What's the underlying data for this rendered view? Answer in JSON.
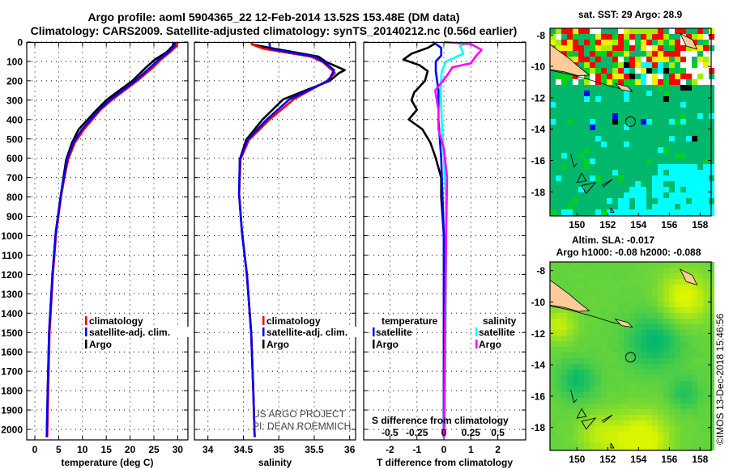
{
  "title": {
    "line1": "Argo profile: aoml 5904365_22 12-Feb-2014 13.52S 153.48E (DM data)",
    "line2": "Climatology: CARS2009. Satellite-adjusted climatology: synTS_20140212.nc (0.56d earlier)"
  },
  "chart_data": [
    {
      "type": "line",
      "name": "temperature-profile",
      "xlabel": "temperature (deg C)",
      "ylabel": "depth",
      "ylim": [
        2058,
        0
      ],
      "yticks": [
        0,
        100,
        200,
        300,
        400,
        500,
        600,
        700,
        800,
        900,
        1000,
        1100,
        1200,
        1300,
        1400,
        1500,
        1600,
        1700,
        1800,
        1900,
        2000
      ],
      "ytick_labels": [
        "0",
        "100",
        "200",
        "300",
        "400",
        "500",
        "600",
        "700",
        "800",
        "900",
        "1000",
        "1100",
        "1200",
        "1300",
        "1400",
        "1500",
        "1600",
        "1700",
        "1800",
        "1900",
        "2000"
      ],
      "xtick_values": [
        0,
        5,
        10,
        15,
        20,
        25,
        30
      ],
      "xticks": [
        "0",
        "5",
        "10",
        "15",
        "20",
        "25",
        "30"
      ],
      "legend": [
        "climatology",
        "satellite-adj. clim.",
        "Argo"
      ],
      "series": [
        {
          "name": "Argo",
          "color": "#000000",
          "depth": [
            0,
            20,
            54,
            90,
            130,
            200,
            296,
            350,
            451,
            520,
            605,
            700,
            785,
            981,
            1200,
            1500,
            1800,
            2040
          ],
          "values": [
            29.1,
            29.0,
            27.6,
            25.2,
            23.4,
            20.5,
            15.2,
            13.0,
            9.2,
            7.8,
            6.6,
            6.0,
            5.5,
            4.4,
            3.7,
            3.0,
            2.7,
            2.5
          ]
        },
        {
          "name": "climatology",
          "color": "#ff0000",
          "depth": [
            0,
            20,
            54,
            90,
            130,
            200,
            296,
            350,
            451,
            520,
            605,
            700,
            785,
            981,
            1200,
            1500,
            1800,
            2040
          ],
          "values": [
            30.0,
            29.8,
            28.3,
            26.5,
            24.9,
            21.5,
            16.3,
            13.8,
            10.3,
            8.4,
            7.0,
            6.2,
            5.6,
            4.5,
            3.8,
            3.1,
            2.8,
            2.6
          ]
        },
        {
          "name": "satellite-adj. clim.",
          "color": "#0000ff",
          "depth": [
            0,
            20,
            54,
            90,
            130,
            200,
            296,
            350,
            451,
            520,
            605,
            700,
            785,
            981,
            1200,
            1500,
            1800,
            2040
          ],
          "values": [
            29.5,
            29.3,
            28.0,
            26.0,
            24.3,
            21.1,
            15.9,
            13.5,
            9.9,
            8.1,
            6.8,
            6.1,
            5.5,
            4.4,
            3.7,
            3.0,
            2.7,
            2.5
          ]
        }
      ]
    },
    {
      "type": "line",
      "name": "salinity-profile",
      "xlabel": "salinity",
      "xtick_values": [
        34,
        34.5,
        35,
        35.5,
        36
      ],
      "xticks": [
        "34",
        "34.5",
        "35",
        "35.5",
        "36"
      ],
      "legend": [
        "climatology",
        "satellite-adj. clim.",
        "Argo"
      ],
      "series": [
        {
          "name": "Argo",
          "color": "#000000",
          "depth": [
            0,
            12,
            35,
            75,
            103,
            145,
            160,
            200,
            296,
            400,
            505,
            605,
            785,
            981,
            1200,
            1500,
            1800,
            2040
          ],
          "values": [
            34.62,
            34.62,
            34.95,
            35.56,
            35.67,
            35.93,
            35.85,
            35.72,
            35.06,
            34.77,
            34.54,
            34.45,
            34.44,
            34.48,
            34.55,
            34.61,
            34.64,
            34.66
          ]
        },
        {
          "name": "climatology",
          "color": "#ff0000",
          "depth": [
            0,
            12,
            35,
            75,
            103,
            145,
            160,
            200,
            296,
            400,
            505,
            605,
            785,
            981,
            1200,
            1500,
            1800,
            2040
          ],
          "values": [
            34.62,
            34.62,
            34.79,
            35.45,
            35.62,
            35.75,
            35.79,
            35.68,
            35.21,
            34.87,
            34.58,
            34.46,
            34.44,
            34.48,
            34.55,
            34.61,
            34.64,
            34.66
          ]
        },
        {
          "name": "satellite-adj. clim.",
          "color": "#0000ff",
          "depth": [
            0,
            12,
            35,
            75,
            103,
            145,
            160,
            200,
            296,
            400,
            505,
            605,
            785,
            981,
            1200,
            1500,
            1800,
            2040
          ],
          "values": [
            34.87,
            34.87,
            34.88,
            35.5,
            35.64,
            35.78,
            35.76,
            35.7,
            35.15,
            34.83,
            34.56,
            34.45,
            34.44,
            34.48,
            34.55,
            34.61,
            34.64,
            34.66
          ]
        }
      ]
    },
    {
      "type": "line",
      "name": "difference-profile",
      "xlabel": "T difference from climatology",
      "xtick_values": [
        -2,
        -1,
        0,
        1,
        2
      ],
      "xticks": [
        "-2",
        "-1",
        "0",
        "1",
        "2"
      ],
      "s_axis_label": "S difference from climatology",
      "s_tick_values": [
        -0.5,
        -0.25,
        0,
        0.25,
        0.5
      ],
      "s_ticks": [
        "-0.5",
        "-0.25",
        "0",
        "0.25",
        "0.5"
      ],
      "legend": {
        "temperature": "temperature",
        "salinity": "salinity",
        "satellite": "satellite",
        "argo": "Argo"
      },
      "series": [
        {
          "name": "T Argo",
          "axis": "T",
          "color": "#000000",
          "depth": [
            5,
            30,
            60,
            90,
            120,
            150,
            200,
            260,
            300,
            350,
            400,
            450,
            520,
            600,
            700,
            800,
            1000,
            1500,
            2040
          ],
          "values": [
            -0.3,
            -0.6,
            -1.2,
            -1.5,
            -0.9,
            -0.6,
            -0.7,
            -1.1,
            -1.2,
            -1.0,
            -1.3,
            -0.8,
            -0.5,
            -0.3,
            -0.1,
            -0.1,
            0,
            0,
            0
          ]
        },
        {
          "name": "T satellite",
          "axis": "T",
          "color": "#0000ff",
          "depth": [
            0,
            30,
            70,
            100,
            150,
            250,
            400,
            600,
            800,
            1000,
            2040
          ],
          "values": [
            -0.4,
            -0.1,
            -0.1,
            -0.3,
            -0.3,
            -0.2,
            -0.2,
            -0.1,
            -0.05,
            0,
            0
          ]
        },
        {
          "name": "S satellite",
          "axis": "S",
          "color": "#00ffff",
          "depth": [
            0,
            20,
            60,
            100,
            150,
            250,
            400,
            600,
            800,
            1000,
            2040
          ],
          "values": [
            0.255,
            0.15,
            0.18,
            0.02,
            -0.02,
            -0.03,
            -0.02,
            0,
            0.02,
            0.02,
            0.01
          ]
        },
        {
          "name": "S Argo",
          "axis": "S",
          "color": "#ff00ff",
          "depth": [
            0,
            10,
            40,
            70,
            110,
            130,
            180,
            250,
            350,
            450,
            550,
            700,
            1000,
            2040
          ],
          "values": [
            0,
            0.25,
            0.35,
            0.3,
            0.25,
            0.08,
            0.02,
            -0.08,
            -0.05,
            -0.05,
            0,
            0.03,
            0.02,
            0
          ]
        }
      ]
    }
  ],
  "credits": {
    "line1": "US ARGO PROJECT",
    "line2": "PI: DEAN ROEMMICH"
  },
  "maps": {
    "sst": {
      "title": "sat. SST: 29 Argo: 28.9"
    },
    "sla": {
      "title1": "Altim. SLA: -0.017",
      "title2": "Argo h1000: -0.08 h2000: -0.088"
    },
    "lat_values": [
      -8,
      -10,
      -12,
      -14,
      -16,
      -18
    ],
    "lat_labels": [
      "-8",
      "-10",
      "-12",
      "-14",
      "-16",
      "-18"
    ],
    "lon_values": [
      150,
      152,
      154,
      156,
      158
    ],
    "lon_labels": [
      "150",
      "152",
      "154",
      "156",
      "158"
    ],
    "float_position": {
      "lat": -13.52,
      "lon": 153.48
    },
    "watermark": "©IMOS 13-Dec-2018 15:46:56",
    "colors": {
      "land": "#ffcc99",
      "ocean": "#00b86b",
      "cyan": "#00ffff",
      "blue": "#0000ff",
      "red": "#ff0000",
      "yellow": "#f0f000",
      "lime": "#00d020",
      "white": "#ffffff"
    }
  }
}
